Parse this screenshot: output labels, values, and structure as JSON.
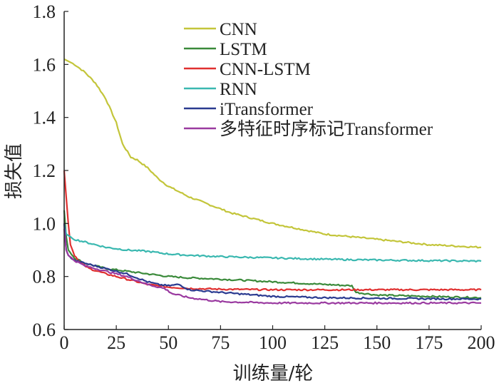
{
  "chart_data": {
    "type": "line",
    "xlabel": "训练量/轮",
    "ylabel": "损失值",
    "xlim": [
      0,
      200
    ],
    "ylim": [
      0.6,
      1.8
    ],
    "xticks": [
      0,
      25,
      50,
      75,
      100,
      125,
      150,
      175,
      200
    ],
    "yticks": [
      "0.6",
      "0.8",
      "1.0",
      "1.2",
      "1.4",
      "1.6",
      "1.8"
    ],
    "grid": false,
    "legend_position": "top-right",
    "series": [
      {
        "name": "CNN",
        "color": "#c3c53a",
        "x": [
          0,
          5,
          10,
          15,
          20,
          25,
          28,
          32,
          35,
          40,
          45,
          50,
          60,
          70,
          80,
          90,
          100,
          125,
          150,
          175,
          200
        ],
        "y": [
          1.62,
          1.6,
          1.57,
          1.53,
          1.47,
          1.38,
          1.3,
          1.25,
          1.24,
          1.21,
          1.17,
          1.14,
          1.1,
          1.07,
          1.04,
          1.02,
          1.0,
          0.96,
          0.94,
          0.92,
          0.91
        ]
      },
      {
        "name": "LSTM",
        "color": "#3a8a3a",
        "x": [
          0,
          1,
          2,
          5,
          10,
          20,
          30,
          40,
          50,
          60,
          75,
          100,
          125,
          138,
          140,
          150,
          175,
          200
        ],
        "y": [
          1.05,
          0.95,
          0.9,
          0.87,
          0.85,
          0.83,
          0.82,
          0.81,
          0.8,
          0.795,
          0.79,
          0.78,
          0.77,
          0.765,
          0.74,
          0.73,
          0.725,
          0.72
        ]
      },
      {
        "name": "CNN-LSTM",
        "color": "#e03030",
        "x": [
          0,
          1,
          2,
          3,
          5,
          8,
          12,
          20,
          30,
          40,
          50,
          60,
          75,
          100,
          125,
          150,
          175,
          200
        ],
        "y": [
          1.2,
          1.1,
          1.0,
          0.92,
          0.88,
          0.85,
          0.83,
          0.81,
          0.79,
          0.77,
          0.76,
          0.755,
          0.752,
          0.75,
          0.75,
          0.75,
          0.75,
          0.75
        ]
      },
      {
        "name": "RNN",
        "color": "#3ab8b0",
        "x": [
          0,
          1,
          3,
          5,
          10,
          15,
          20,
          25,
          30,
          40,
          50,
          60,
          75,
          100,
          125,
          150,
          175,
          200
        ],
        "y": [
          1.0,
          0.96,
          0.95,
          0.94,
          0.93,
          0.92,
          0.91,
          0.905,
          0.9,
          0.895,
          0.885,
          0.88,
          0.875,
          0.87,
          0.865,
          0.862,
          0.86,
          0.858
        ]
      },
      {
        "name": "iTransformer",
        "color": "#2a3a90",
        "x": [
          0,
          1,
          2,
          5,
          10,
          20,
          30,
          40,
          45,
          50,
          55,
          60,
          75,
          100,
          125,
          150,
          175,
          200
        ],
        "y": [
          1.0,
          0.9,
          0.88,
          0.86,
          0.85,
          0.83,
          0.81,
          0.78,
          0.77,
          0.765,
          0.77,
          0.75,
          0.74,
          0.725,
          0.72,
          0.718,
          0.716,
          0.715
        ]
      },
      {
        "name": "多特征时序标记Transformer",
        "color": "#9a3aa0",
        "x": [
          0,
          1,
          2,
          5,
          10,
          20,
          30,
          40,
          48,
          52,
          60,
          70,
          75,
          100,
          125,
          150,
          175,
          200
        ],
        "y": [
          0.98,
          0.9,
          0.88,
          0.86,
          0.84,
          0.82,
          0.8,
          0.77,
          0.755,
          0.735,
          0.72,
          0.71,
          0.705,
          0.7,
          0.7,
          0.7,
          0.7,
          0.7
        ]
      }
    ]
  }
}
